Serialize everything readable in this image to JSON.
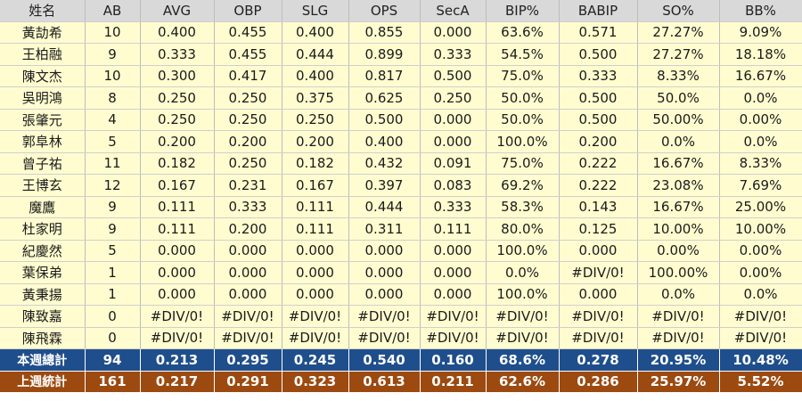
{
  "headers": [
    "姓名",
    "AB",
    "AVG",
    "OBP",
    "SLG",
    "OPS",
    "SecA",
    "BIP%",
    "BABIP",
    "SO%",
    "BB%"
  ],
  "rows": [
    [
      "黃劼希",
      "10",
      "0.400",
      "0.455",
      "0.400",
      "0.855",
      "0.000",
      "63.6%",
      "0.571",
      "27.27%",
      "9.09%"
    ],
    [
      "王柏融",
      "9",
      "0.333",
      "0.455",
      "0.444",
      "0.899",
      "0.333",
      "54.5%",
      "0.500",
      "27.27%",
      "18.18%"
    ],
    [
      "陳文杰",
      "10",
      "0.300",
      "0.417",
      "0.400",
      "0.817",
      "0.500",
      "75.0%",
      "0.333",
      "8.33%",
      "16.67%"
    ],
    [
      "吳明鴻",
      "8",
      "0.250",
      "0.250",
      "0.375",
      "0.625",
      "0.250",
      "50.0%",
      "0.500",
      "50.0%",
      "0.0%"
    ],
    [
      "張肇元",
      "4",
      "0.250",
      "0.250",
      "0.250",
      "0.500",
      "0.000",
      "50.0%",
      "0.500",
      "50.00%",
      "0.00%"
    ],
    [
      "郭阜林",
      "5",
      "0.200",
      "0.200",
      "0.200",
      "0.400",
      "0.000",
      "100.0%",
      "0.200",
      "0.0%",
      "0.0%"
    ],
    [
      "曾子祐",
      "11",
      "0.182",
      "0.250",
      "0.182",
      "0.432",
      "0.091",
      "75.0%",
      "0.222",
      "16.67%",
      "8.33%"
    ],
    [
      "王博玄",
      "12",
      "0.167",
      "0.231",
      "0.167",
      "0.397",
      "0.083",
      "69.2%",
      "0.222",
      "23.08%",
      "7.69%"
    ],
    [
      "魔鷹",
      "9",
      "0.111",
      "0.333",
      "0.111",
      "0.444",
      "0.333",
      "58.3%",
      "0.143",
      "16.67%",
      "25.00%"
    ],
    [
      "杜家明",
      "9",
      "0.111",
      "0.200",
      "0.111",
      "0.311",
      "0.111",
      "80.0%",
      "0.125",
      "10.00%",
      "10.00%"
    ],
    [
      "紀慶然",
      "5",
      "0.000",
      "0.000",
      "0.000",
      "0.000",
      "0.000",
      "100.0%",
      "0.000",
      "0.00%",
      "0.00%"
    ],
    [
      "葉保弟",
      "1",
      "0.000",
      "0.000",
      "0.000",
      "0.000",
      "0.000",
      "0.0%",
      "#DIV/0!",
      "100.00%",
      "0.00%"
    ],
    [
      "黃秉揚",
      "1",
      "0.000",
      "0.000",
      "0.000",
      "0.000",
      "0.000",
      "100.0%",
      "0.000",
      "0.0%",
      "0.0%"
    ],
    [
      "陳致嘉",
      "0",
      "#DIV/0!",
      "#DIV/0!",
      "#DIV/0!",
      "#DIV/0!",
      "#DIV/0!",
      "#DIV/0!",
      "#DIV/0!",
      "#DIV/0!",
      "#DIV/0!"
    ],
    [
      "陳飛霖",
      "0",
      "#DIV/0!",
      "#DIV/0!",
      "#DIV/0!",
      "#DIV/0!",
      "#DIV/0!",
      "#DIV/0!",
      "#DIV/0!",
      "#DIV/0!",
      "#DIV/0!"
    ]
  ],
  "total_row": [
    "本週總計",
    "94",
    "0.213",
    "0.295",
    "0.245",
    "0.540",
    "0.160",
    "68.6%",
    "0.278",
    "20.95%",
    "10.48%"
  ],
  "last_week_row": [
    "上週統計",
    "161",
    "0.217",
    "0.291",
    "0.323",
    "0.613",
    "0.211",
    "62.6%",
    "0.286",
    "25.97%",
    "5.52%"
  ],
  "colors": {
    "header_bg": "#d9d9d9",
    "row_bg": "#fffdd0",
    "total_bg": "#1f4e8c",
    "last_week_bg": "#9c4a10"
  }
}
